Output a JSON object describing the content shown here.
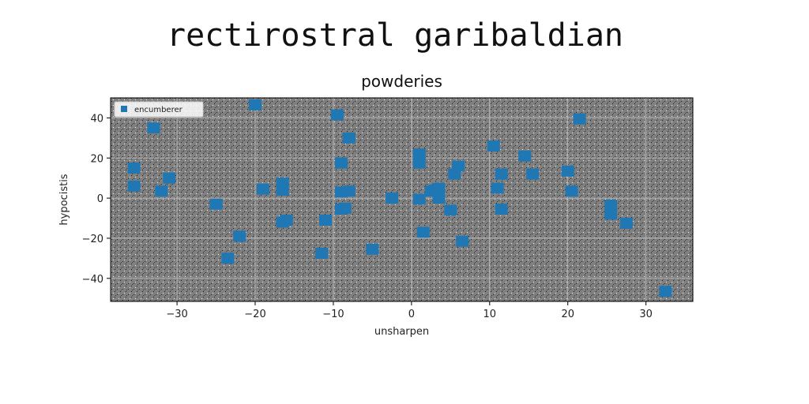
{
  "figure": {
    "suptitle": "rectirostral garibaldian"
  },
  "chart_data": {
    "type": "scatter",
    "title": "powderies",
    "xlabel": "unsharpen",
    "ylabel": "hypocistis",
    "xlim": [
      -38.5,
      36
    ],
    "ylim": [
      -51.5,
      50
    ],
    "xticks": [
      -30,
      -20,
      -10,
      0,
      10,
      20,
      30
    ],
    "yticks": [
      -40,
      -20,
      0,
      20,
      40
    ],
    "grid": true,
    "legend_position": "top-left",
    "background_color": "#808080",
    "series": [
      {
        "name": "encumberer",
        "color": "#1f77b4",
        "marker": "square",
        "points": [
          [
            -35.5,
            15
          ],
          [
            -35.5,
            6
          ],
          [
            -33,
            35
          ],
          [
            -32,
            3.5
          ],
          [
            -31,
            10
          ],
          [
            -25,
            -3
          ],
          [
            -23.5,
            -30
          ],
          [
            -22,
            -19
          ],
          [
            -19,
            4.5
          ],
          [
            -20,
            46.5
          ],
          [
            -16.5,
            7.5
          ],
          [
            -16.5,
            4
          ],
          [
            -16,
            -11
          ],
          [
            -16.5,
            -12
          ],
          [
            -11.5,
            -27.5
          ],
          [
            -11,
            -11
          ],
          [
            -9.5,
            41.5
          ],
          [
            -9,
            17.5
          ],
          [
            -9,
            3
          ],
          [
            -9,
            -5.5
          ],
          [
            -8.5,
            -5
          ],
          [
            -8,
            30
          ],
          [
            -8,
            3.5
          ],
          [
            -5,
            -25.5
          ],
          [
            -2.5,
            0
          ],
          [
            1,
            22
          ],
          [
            1,
            17.5
          ],
          [
            1,
            -0.5
          ],
          [
            1.5,
            -17
          ],
          [
            2.5,
            3.5
          ],
          [
            3,
            4
          ],
          [
            3.5,
            5
          ],
          [
            3.5,
            0
          ],
          [
            5,
            -6
          ],
          [
            5.5,
            12
          ],
          [
            6,
            16
          ],
          [
            6.5,
            -21.5
          ],
          [
            10.5,
            26
          ],
          [
            11,
            5
          ],
          [
            11.5,
            12
          ],
          [
            11.5,
            -5.5
          ],
          [
            14.5,
            21
          ],
          [
            15.5,
            12
          ],
          [
            20,
            13.5
          ],
          [
            20.5,
            3.5
          ],
          [
            21.5,
            39.5
          ],
          [
            25.5,
            -3.5
          ],
          [
            25.5,
            -8
          ],
          [
            27.5,
            -12.5
          ],
          [
            32.5,
            -46.5
          ]
        ]
      }
    ]
  }
}
